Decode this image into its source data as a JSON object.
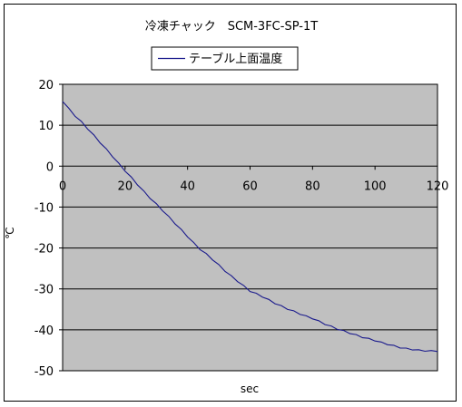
{
  "chart_data": {
    "type": "line",
    "title": "冷凍チャック　SCM-3FC-SP-1T",
    "xlabel": "sec",
    "ylabel": "℃",
    "xlim": [
      0,
      120
    ],
    "ylim": [
      -50,
      20
    ],
    "x_ticks": [
      "0",
      "20",
      "40",
      "60",
      "80",
      "100",
      "120"
    ],
    "y_ticks": [
      "20",
      "10",
      "0",
      "-10",
      "-20",
      "-30",
      "-40",
      "-50"
    ],
    "grid": "horizontal",
    "plot_background": "#c0c0c0",
    "legend_position": "top",
    "series": [
      {
        "name": "テーブル上面温度",
        "color": "#1a1a8c",
        "x": [
          0,
          2,
          4,
          6,
          8,
          10,
          12,
          14,
          16,
          18,
          20,
          22,
          24,
          26,
          28,
          30,
          32,
          34,
          36,
          38,
          40,
          42,
          44,
          46,
          48,
          50,
          52,
          54,
          56,
          58,
          60,
          62,
          64,
          66,
          68,
          70,
          72,
          74,
          76,
          78,
          80,
          82,
          84,
          86,
          88,
          90,
          92,
          94,
          96,
          98,
          100,
          102,
          104,
          106,
          108,
          110,
          112,
          114,
          116,
          118,
          120
        ],
        "y": [
          15.8,
          14.0,
          12.3,
          10.8,
          9.2,
          7.5,
          5.8,
          4.1,
          2.4,
          0.6,
          -1.1,
          -2.8,
          -4.5,
          -6.2,
          -7.8,
          -9.3,
          -10.8,
          -12.4,
          -14.0,
          -15.6,
          -17.2,
          -18.8,
          -20.3,
          -21.5,
          -22.8,
          -24.2,
          -25.6,
          -26.9,
          -28.1,
          -29.3,
          -30.5,
          -31.2,
          -31.9,
          -32.7,
          -33.5,
          -34.2,
          -34.9,
          -35.5,
          -36.1,
          -36.7,
          -37.2,
          -37.9,
          -38.6,
          -39.2,
          -39.8,
          -40.3,
          -40.8,
          -41.3,
          -41.8,
          -42.2,
          -42.6,
          -43.1,
          -43.5,
          -43.9,
          -44.3,
          -44.6,
          -44.8,
          -45.0,
          -45.1,
          -45.2,
          -45.3
        ]
      }
    ]
  }
}
